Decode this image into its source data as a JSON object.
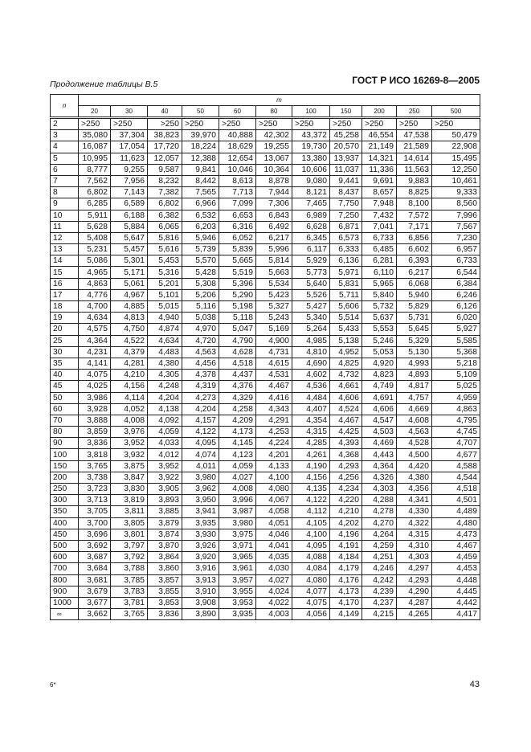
{
  "header": {
    "standard": "ГОСТ Р ИСО 16269-8—2005"
  },
  "caption": "Продолжение таблицы В.5",
  "table": {
    "n_label": "n",
    "m_label": "m",
    "columns": [
      "20",
      "30",
      "40",
      "50",
      "60",
      "80",
      "100",
      "150",
      "200",
      "250",
      "500"
    ],
    "rows": [
      [
        "2",
        ">250",
        ">250",
        ">250",
        ">250",
        ">250",
        ">250",
        ">250",
        ">250",
        ">250",
        ">250",
        ">250"
      ],
      [
        "3",
        "35,080",
        "37,304",
        "38,823",
        "39,970",
        "40,888",
        "42,302",
        "43,372",
        "45,258",
        "46,554",
        "47,538",
        "50,479"
      ],
      [
        "4",
        "16,087",
        "17,054",
        "17,720",
        "18,224",
        "18,629",
        "19,255",
        "19,730",
        "20,570",
        "21,149",
        "21,589",
        "22,908"
      ],
      [
        "5",
        "10,995",
        "11,623",
        "12,057",
        "12,388",
        "12,654",
        "13,067",
        "13,380",
        "13,937",
        "14,321",
        "14,614",
        "15,495"
      ],
      [
        "6",
        "8,777",
        "9,255",
        "9,587",
        "9,841",
        "10,046",
        "10,364",
        "10,606",
        "11,037",
        "11,336",
        "11,563",
        "12,250"
      ],
      [
        "7",
        "7,562",
        "7,956",
        "8,232",
        "8,442",
        "8,613",
        "8,878",
        "9,080",
        "9,441",
        "9,691",
        "9,883",
        "10,461"
      ],
      [
        "8",
        "6,802",
        "7,143",
        "7,382",
        "7,565",
        "7,713",
        "7,944",
        "8,121",
        "8,437",
        "8,657",
        "8,825",
        "9,333"
      ],
      [
        "9",
        "6,285",
        "6,589",
        "6,802",
        "6,966",
        "7,099",
        "7,306",
        "7,465",
        "7,750",
        "7,948",
        "8,100",
        "8,560"
      ],
      [
        "10",
        "5,911",
        "6,188",
        "6,382",
        "6,532",
        "6,653",
        "6,843",
        "6,989",
        "7,250",
        "7,432",
        "7,572",
        "7,996"
      ],
      [
        "11",
        "5,628",
        "5,884",
        "6,065",
        "6,203",
        "6,316",
        "6,492",
        "6,628",
        "6,871",
        "7,041",
        "7,171",
        "7,567"
      ],
      [
        "12",
        "5,408",
        "5,647",
        "5,816",
        "5,946",
        "6,052",
        "6,217",
        "6,345",
        "6,573",
        "6,733",
        "6,856",
        "7,230"
      ],
      [
        "13",
        "5,231",
        "5,457",
        "5,616",
        "5,739",
        "5,839",
        "5,996",
        "6,117",
        "6,333",
        "6,485",
        "6,602",
        "6,957"
      ],
      [
        "14",
        "5,086",
        "5,301",
        "5,453",
        "5,570",
        "5,665",
        "5,814",
        "5,929",
        "6,136",
        "6,281",
        "6,393",
        "6,733"
      ],
      [
        "15",
        "4,965",
        "5,171",
        "5,316",
        "5,428",
        "5,519",
        "5,663",
        "5,773",
        "5,971",
        "6,110",
        "6,217",
        "6,544"
      ],
      [
        "16",
        "4,863",
        "5,061",
        "5,201",
        "5,308",
        "5,396",
        "5,534",
        "5,640",
        "5,831",
        "5,965",
        "6,068",
        "6,384"
      ],
      [
        "17",
        "4,776",
        "4,967",
        "5,101",
        "5,206",
        "5,290",
        "5,423",
        "5,526",
        "5,711",
        "5,840",
        "5,940",
        "6,246"
      ],
      [
        "18",
        "4,700",
        "4,885",
        "5,015",
        "5,116",
        "5,198",
        "5,327",
        "5,427",
        "5,606",
        "5,732",
        "5,829",
        "6,126"
      ],
      [
        "19",
        "4,634",
        "4,813",
        "4,940",
        "5,038",
        "5,118",
        "5,243",
        "5,340",
        "5,514",
        "5,637",
        "5,731",
        "6,020"
      ],
      [
        "20",
        "4,575",
        "4,750",
        "4,874",
        "4,970",
        "5,047",
        "5,169",
        "5,264",
        "5,433",
        "5,553",
        "5,645",
        "5,927"
      ],
      [
        "25",
        "4,364",
        "4,522",
        "4,634",
        "4,720",
        "4,790",
        "4,900",
        "4,985",
        "5,138",
        "5,246",
        "5,329",
        "5,585"
      ],
      [
        "30",
        "4,231",
        "4,379",
        "4,483",
        "4,563",
        "4,628",
        "4,731",
        "4,810",
        "4,952",
        "5,053",
        "5,130",
        "5,368"
      ],
      [
        "35",
        "4,141",
        "4,281",
        "4,380",
        "4,456",
        "4,518",
        "4,615",
        "4,690",
        "4,825",
        "4,920",
        "4,993",
        "5,218"
      ],
      [
        "40",
        "4,075",
        "4,210",
        "4,305",
        "4,378",
        "4,437",
        "4,531",
        "4,602",
        "4,732",
        "4,823",
        "4,893",
        "5,109"
      ],
      [
        "45",
        "4,025",
        "4,156",
        "4,248",
        "4,319",
        "4,376",
        "4,467",
        "4,536",
        "4,661",
        "4,749",
        "4,817",
        "5,025"
      ],
      [
        "50",
        "3,986",
        "4,114",
        "4,204",
        "4,273",
        "4,329",
        "4,416",
        "4,484",
        "4,606",
        "4,691",
        "4,757",
        "4,959"
      ],
      [
        "60",
        "3,928",
        "4,052",
        "4,138",
        "4,204",
        "4,258",
        "4,343",
        "4,407",
        "4,524",
        "4,606",
        "4,669",
        "4,863"
      ],
      [
        "70",
        "3,888",
        "4,008",
        "4,092",
        "4,157",
        "4,209",
        "4,291",
        "4,354",
        "4,467",
        "4,547",
        "4,608",
        "4,795"
      ],
      [
        "80",
        "3,859",
        "3,976",
        "4,059",
        "4,122",
        "4,173",
        "4,253",
        "4,315",
        "4,425",
        "4,503",
        "4,563",
        "4,745"
      ],
      [
        "90",
        "3,836",
        "3,952",
        "4,033",
        "4,095",
        "4,145",
        "4,224",
        "4,285",
        "4,393",
        "4,469",
        "4,528",
        "4,707"
      ],
      [
        "100",
        "3,818",
        "3,932",
        "4,012",
        "4,074",
        "4,123",
        "4,201",
        "4,261",
        "4,368",
        "4,443",
        "4,500",
        "4,677"
      ],
      [
        "150",
        "3,765",
        "3,875",
        "3,952",
        "4,011",
        "4,059",
        "4,133",
        "4,190",
        "4,293",
        "4,364",
        "4,420",
        "4,588"
      ],
      [
        "200",
        "3,738",
        "3,847",
        "3,922",
        "3,980",
        "4,027",
        "4,100",
        "4,156",
        "4,256",
        "4,326",
        "4,380",
        "4,544"
      ],
      [
        "250",
        "3,723",
        "3,830",
        "3,905",
        "3,962",
        "4,008",
        "4,080",
        "4,135",
        "4,234",
        "4,303",
        "4,356",
        "4,518"
      ],
      [
        "300",
        "3,713",
        "3,819",
        "3,893",
        "3,950",
        "3,996",
        "4,067",
        "4,122",
        "4,220",
        "4,288",
        "4,341",
        "4,501"
      ],
      [
        "350",
        "3,705",
        "3,811",
        "3,885",
        "3,941",
        "3,987",
        "4,058",
        "4,112",
        "4,210",
        "4,278",
        "4,330",
        "4,489"
      ],
      [
        "400",
        "3,700",
        "3,805",
        "3,879",
        "3,935",
        "3,980",
        "4,051",
        "4,105",
        "4,202",
        "4,270",
        "4,322",
        "4,480"
      ],
      [
        "450",
        "3,696",
        "3,801",
        "3,874",
        "3,930",
        "3,975",
        "4,046",
        "4,100",
        "4,196",
        "4,264",
        "4,315",
        "4,473"
      ],
      [
        "500",
        "3,692",
        "3,797",
        "3,870",
        "3,926",
        "3,971",
        "4,041",
        "4,095",
        "4,191",
        "4,259",
        "4,310",
        "4,467"
      ],
      [
        "600",
        "3,687",
        "3,792",
        "3,864",
        "3,920",
        "3,965",
        "4,035",
        "4,088",
        "4,184",
        "4,251",
        "4,303",
        "4,459"
      ],
      [
        "700",
        "3,684",
        "3,788",
        "3,860",
        "3,916",
        "3,961",
        "4,030",
        "4,084",
        "4,179",
        "4,246",
        "4,297",
        "4,453"
      ],
      [
        "800",
        "3,681",
        "3,785",
        "3,857",
        "3,913",
        "3,957",
        "4,027",
        "4,080",
        "4,176",
        "4,242",
        "4,293",
        "4,448"
      ],
      [
        "900",
        "3,679",
        "3,783",
        "3,855",
        "3,910",
        "3,955",
        "4,024",
        "4,077",
        "4,173",
        "4,239",
        "4,290",
        "4,445"
      ],
      [
        "1000",
        "3,677",
        "3,781",
        "3,853",
        "3,908",
        "3,953",
        "4,022",
        "4,075",
        "4,170",
        "4,237",
        "4,287",
        "4,442"
      ],
      [
        "∞",
        "3,662",
        "3,765",
        "3,836",
        "3,890",
        "3,935",
        "4,003",
        "4,056",
        "4,149",
        "4,215",
        "4,265",
        "4,417"
      ]
    ]
  },
  "footer": {
    "sheet_mark": "6*",
    "page_number": "43"
  }
}
